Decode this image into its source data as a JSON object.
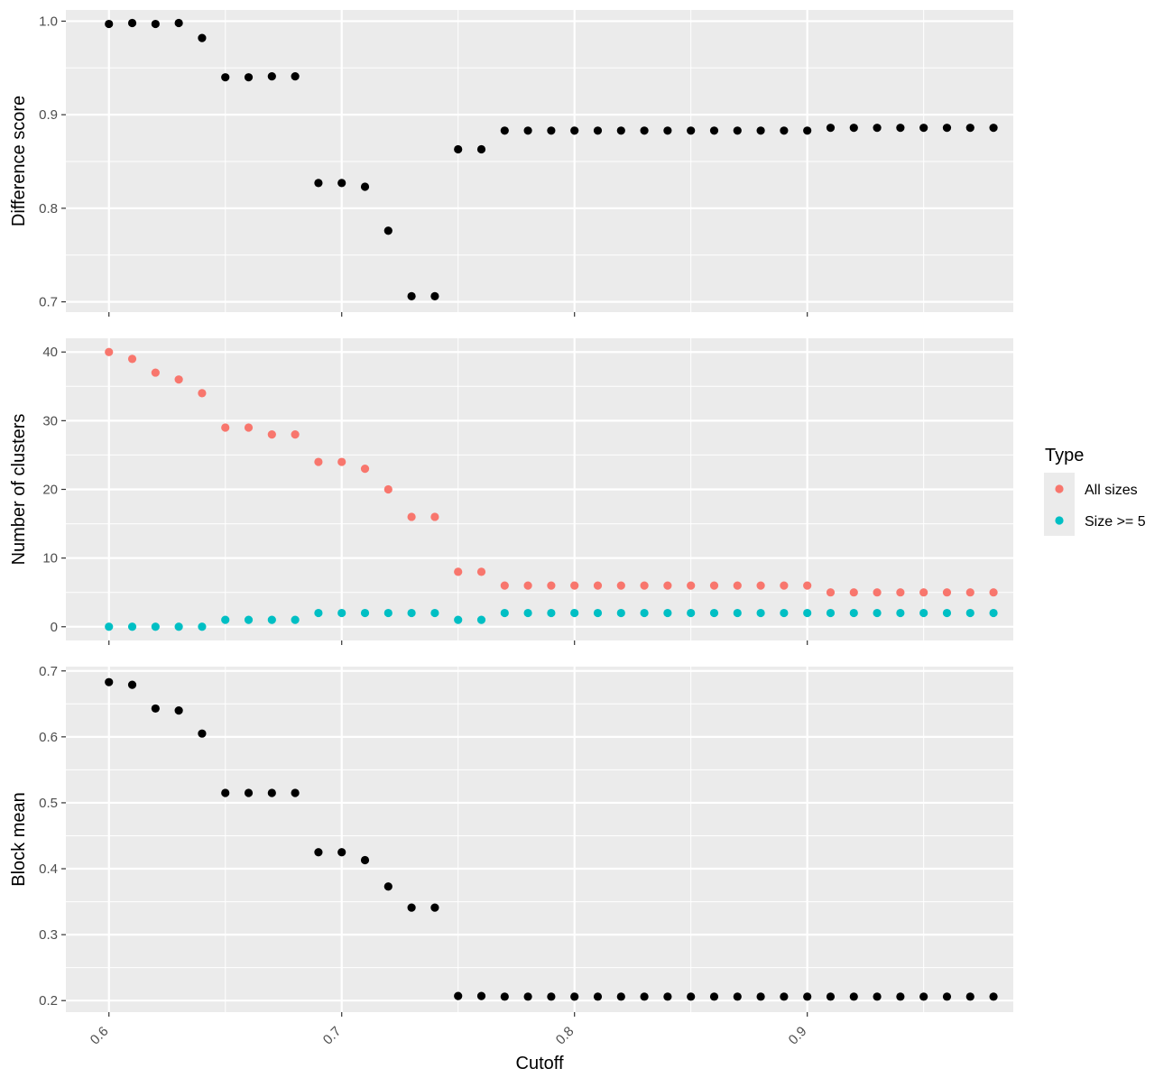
{
  "chart_data": {
    "type": "scatter",
    "xlabel": "Cutoff",
    "x_ticks": [
      0.6,
      0.7,
      0.8,
      0.9
    ],
    "x_tick_labels": [
      "0.6",
      "0.7",
      "0.8",
      "0.9"
    ],
    "xlim": [
      0.5815,
      0.9885
    ],
    "x": [
      0.6,
      0.61,
      0.62,
      0.63,
      0.64,
      0.65,
      0.66,
      0.67,
      0.68,
      0.69,
      0.7,
      0.71,
      0.72,
      0.73,
      0.74,
      0.75,
      0.76,
      0.77,
      0.78,
      0.79,
      0.8,
      0.81,
      0.82,
      0.83,
      0.84,
      0.85,
      0.86,
      0.87,
      0.88,
      0.89,
      0.9,
      0.91,
      0.92,
      0.93,
      0.94,
      0.95,
      0.96,
      0.97,
      0.98
    ],
    "grid": true,
    "background": "#ebebeb",
    "legend": {
      "title": "Type",
      "placement": "right",
      "entries": [
        {
          "label": "All sizes",
          "color": "#f8766d"
        },
        {
          "label": "Size >= 5",
          "color": "#00bfc4"
        }
      ]
    },
    "panels": [
      {
        "ylabel": "Difference score",
        "ylim": [
          0.689,
          1.012
        ],
        "y_ticks": [
          0.7,
          0.8,
          0.9,
          1.0
        ],
        "y_tick_labels": [
          "0.7",
          "0.8",
          "0.9",
          "1.0"
        ],
        "series": [
          {
            "color": "#000000",
            "values": [
              0.997,
              0.998,
              0.997,
              0.998,
              0.982,
              0.94,
              0.94,
              0.941,
              0.941,
              0.827,
              0.827,
              0.823,
              0.776,
              0.706,
              0.706,
              0.863,
              0.863,
              0.883,
              0.883,
              0.883,
              0.883,
              0.883,
              0.883,
              0.883,
              0.883,
              0.883,
              0.883,
              0.883,
              0.883,
              0.883,
              0.883,
              0.886,
              0.886,
              0.886,
              0.886,
              0.886,
              0.886,
              0.886,
              0.886
            ]
          }
        ]
      },
      {
        "ylabel": "Number of clusters",
        "ylim": [
          -2,
          42
        ],
        "y_ticks": [
          0,
          10,
          20,
          30,
          40
        ],
        "y_tick_labels": [
          "0",
          "10",
          "20",
          "30",
          "40"
        ],
        "series": [
          {
            "name": "All sizes",
            "color": "#f8766d",
            "values": [
              40,
              39,
              37,
              36,
              34,
              29,
              29,
              28,
              28,
              24,
              24,
              23,
              20,
              16,
              16,
              8,
              8,
              6,
              6,
              6,
              6,
              6,
              6,
              6,
              6,
              6,
              6,
              6,
              6,
              6,
              6,
              5,
              5,
              5,
              5,
              5,
              5,
              5,
              5
            ]
          },
          {
            "name": "Size >= 5",
            "color": "#00bfc4",
            "values": [
              0,
              0,
              0,
              0,
              0,
              1,
              1,
              1,
              1,
              2,
              2,
              2,
              2,
              2,
              2,
              1,
              1,
              2,
              2,
              2,
              2,
              2,
              2,
              2,
              2,
              2,
              2,
              2,
              2,
              2,
              2,
              2,
              2,
              2,
              2,
              2,
              2,
              2,
              2
            ]
          }
        ]
      },
      {
        "ylabel": "Block mean",
        "ylim": [
          0.1825,
          0.7065
        ],
        "y_ticks": [
          0.2,
          0.3,
          0.4,
          0.5,
          0.6,
          0.7
        ],
        "y_tick_labels": [
          "0.2",
          "0.3",
          "0.4",
          "0.5",
          "0.6",
          "0.7"
        ],
        "series": [
          {
            "color": "#000000",
            "values": [
              0.683,
              0.679,
              0.643,
              0.64,
              0.605,
              0.515,
              0.515,
              0.515,
              0.515,
              0.425,
              0.425,
              0.413,
              0.373,
              0.341,
              0.341,
              0.207,
              0.207,
              0.206,
              0.206,
              0.206,
              0.206,
              0.206,
              0.206,
              0.206,
              0.206,
              0.206,
              0.206,
              0.206,
              0.206,
              0.206,
              0.206,
              0.206,
              0.206,
              0.206,
              0.206,
              0.206,
              0.206,
              0.206,
              0.206
            ]
          }
        ]
      }
    ]
  }
}
